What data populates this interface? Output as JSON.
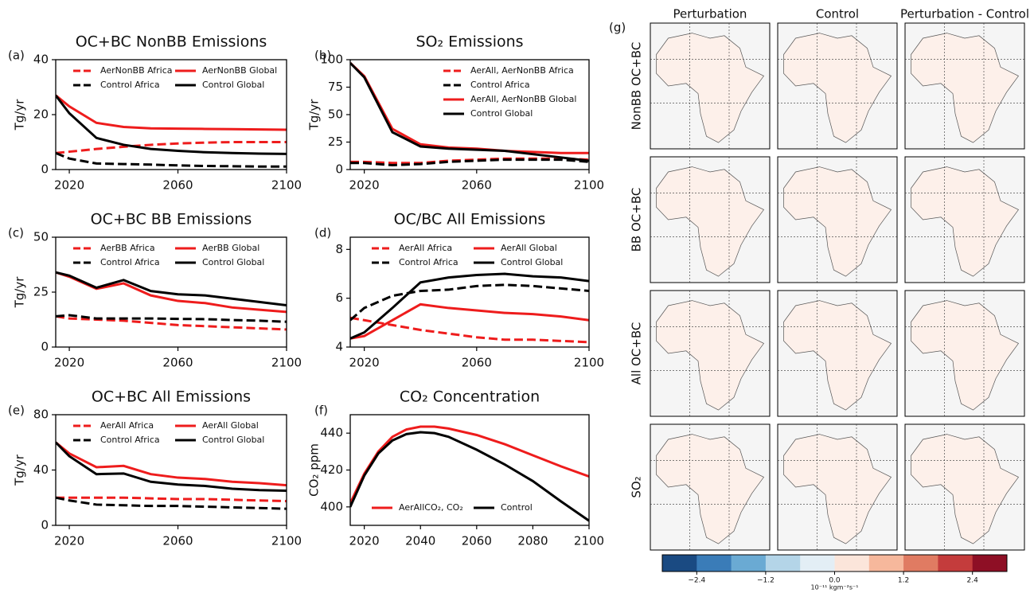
{
  "chart_data": [
    {
      "type": "line",
      "panel_label": "(a)",
      "title": "OC+BC NonBB Emissions",
      "y_label": "Tg/yr",
      "x": [
        2015,
        2020,
        2030,
        2040,
        2050,
        2060,
        2070,
        2080,
        2090,
        2100
      ],
      "xlim": [
        2015,
        2100
      ],
      "xticks": [
        2020,
        2060,
        2100
      ],
      "ylim": [
        0,
        40
      ],
      "yticks": [
        0,
        20,
        40
      ],
      "legend_loc": "upper center",
      "legend_columns": 2,
      "series": [
        {
          "name": "AerNonBB Africa",
          "color": "#ee1c1c",
          "dash": true,
          "values": [
            6,
            6.5,
            7.5,
            8.3,
            9,
            9.5,
            9.8,
            10,
            10,
            10
          ]
        },
        {
          "name": "Control Africa",
          "color": "#000000",
          "dash": true,
          "values": [
            6,
            4,
            2.2,
            2,
            1.8,
            1.5,
            1.3,
            1.2,
            1.1,
            1.1
          ]
        },
        {
          "name": "AerNonBB Global",
          "color": "#ee1c1c",
          "dash": false,
          "values": [
            27,
            23,
            17,
            15.5,
            15,
            14.9,
            14.8,
            14.7,
            14.6,
            14.5
          ]
        },
        {
          "name": "Control Global",
          "color": "#000000",
          "dash": false,
          "values": [
            27,
            20.5,
            11.5,
            9,
            7.5,
            6.8,
            6.3,
            6,
            5.8,
            5.7
          ]
        }
      ]
    },
    {
      "type": "line",
      "panel_label": "(b)",
      "title": "SO₂ Emissions",
      "y_label": "Tg/yr",
      "x": [
        2015,
        2020,
        2030,
        2040,
        2050,
        2060,
        2070,
        2080,
        2090,
        2100
      ],
      "xlim": [
        2015,
        2100
      ],
      "xticks": [
        2020,
        2060,
        2100
      ],
      "ylim": [
        0,
        100
      ],
      "yticks": [
        0,
        25,
        50,
        75,
        100
      ],
      "legend_loc": "upper right",
      "legend_columns": 1,
      "series": [
        {
          "name": "AerAll, AerNonBB Africa",
          "color": "#ee1c1c",
          "dash": true,
          "values": [
            7,
            7,
            6,
            6,
            8,
            9,
            10,
            10,
            10,
            9
          ]
        },
        {
          "name": "Control Africa",
          "color": "#000000",
          "dash": true,
          "values": [
            6,
            6,
            4,
            5,
            7,
            8,
            9,
            9,
            9,
            7
          ]
        },
        {
          "name": "AerAll, AerNonBB Global",
          "color": "#ee1c1c",
          "dash": false,
          "values": [
            97,
            85,
            37,
            23,
            20,
            19,
            17,
            16,
            15,
            15
          ]
        },
        {
          "name": "Control Global",
          "color": "#000000",
          "dash": false,
          "values": [
            97,
            84,
            34,
            21,
            19,
            18,
            17,
            14,
            11,
            8
          ]
        }
      ]
    },
    {
      "type": "line",
      "panel_label": "(c)",
      "title": "OC+BC BB Emissions",
      "y_label": "Tg/yr",
      "x": [
        2015,
        2020,
        2030,
        2040,
        2050,
        2060,
        2070,
        2080,
        2090,
        2100
      ],
      "xlim": [
        2015,
        2100
      ],
      "xticks": [
        2020,
        2060,
        2100
      ],
      "ylim": [
        0,
        50
      ],
      "yticks": [
        0,
        25,
        50
      ],
      "legend_loc": "upper center",
      "legend_columns": 2,
      "series": [
        {
          "name": "AerBB Africa",
          "color": "#ee1c1c",
          "dash": true,
          "values": [
            14,
            13,
            12.5,
            12,
            11,
            10,
            9.5,
            9,
            8.5,
            8
          ]
        },
        {
          "name": "Control Africa",
          "color": "#000000",
          "dash": true,
          "values": [
            14,
            14.5,
            13,
            13,
            13,
            12.8,
            12.7,
            12.3,
            12,
            11.5
          ]
        },
        {
          "name": "AerBB Global",
          "color": "#ee1c1c",
          "dash": false,
          "values": [
            34,
            32,
            26.5,
            29,
            23.5,
            21,
            20,
            18,
            17,
            16
          ]
        },
        {
          "name": "Control Global",
          "color": "#000000",
          "dash": false,
          "values": [
            34,
            32.5,
            27,
            30.5,
            25.5,
            24,
            23.5,
            22,
            20.5,
            19
          ]
        }
      ]
    },
    {
      "type": "line",
      "panel_label": "(d)",
      "title": "OC/BC All Emissions",
      "x": [
        2015,
        2020,
        2030,
        2040,
        2050,
        2060,
        2070,
        2080,
        2090,
        2100
      ],
      "xlim": [
        2015,
        2100
      ],
      "xticks": [
        2020,
        2060,
        2100
      ],
      "ylim": [
        4,
        8.5
      ],
      "yticks": [
        4,
        6,
        8
      ],
      "legend_loc": "upper center",
      "legend_columns": 2,
      "series": [
        {
          "name": "AerAll Africa",
          "color": "#ee1c1c",
          "dash": true,
          "values": [
            5.2,
            5.1,
            4.9,
            4.7,
            4.55,
            4.4,
            4.3,
            4.3,
            4.25,
            4.2
          ]
        },
        {
          "name": "Control Africa",
          "color": "#000000",
          "dash": true,
          "values": [
            5.1,
            5.6,
            6.1,
            6.3,
            6.35,
            6.5,
            6.55,
            6.5,
            6.4,
            6.3
          ]
        },
        {
          "name": "AerAll Global",
          "color": "#ee1c1c",
          "dash": false,
          "values": [
            4.35,
            4.45,
            5.1,
            5.75,
            5.6,
            5.5,
            5.4,
            5.35,
            5.25,
            5.1
          ]
        },
        {
          "name": "Control Global",
          "color": "#000000",
          "dash": false,
          "values": [
            4.35,
            4.6,
            5.6,
            6.65,
            6.85,
            6.95,
            7.0,
            6.9,
            6.85,
            6.7
          ]
        }
      ]
    },
    {
      "type": "line",
      "panel_label": "(e)",
      "title": "OC+BC All Emissions",
      "y_label": "Tg/yr",
      "x": [
        2015,
        2020,
        2030,
        2040,
        2050,
        2060,
        2070,
        2080,
        2090,
        2100
      ],
      "xlim": [
        2015,
        2100
      ],
      "xticks": [
        2020,
        2060,
        2100
      ],
      "ylim": [
        0,
        80
      ],
      "yticks": [
        0,
        40,
        80
      ],
      "legend_loc": "upper center",
      "legend_columns": 2,
      "series": [
        {
          "name": "AerAll Africa",
          "color": "#ee1c1c",
          "dash": true,
          "values": [
            20,
            20,
            20,
            20,
            19.5,
            19,
            19,
            18.5,
            18,
            17.5
          ]
        },
        {
          "name": "Control Africa",
          "color": "#000000",
          "dash": true,
          "values": [
            20,
            18,
            15,
            14.5,
            14,
            14,
            13.5,
            13,
            12.5,
            12
          ]
        },
        {
          "name": "AerAll Global",
          "color": "#ee1c1c",
          "dash": false,
          "values": [
            60,
            52,
            42,
            43,
            37,
            34.5,
            33.5,
            31.5,
            30.5,
            29
          ]
        },
        {
          "name": "Control Global",
          "color": "#000000",
          "dash": false,
          "values": [
            60,
            50,
            37,
            37.5,
            31.5,
            29.5,
            28.5,
            26.5,
            25.5,
            25
          ]
        }
      ]
    },
    {
      "type": "line",
      "panel_label": "(f)",
      "title": "CO₂ Concentration",
      "y_label": "CO₂ ppm",
      "x": [
        2015,
        2020,
        2025,
        2030,
        2035,
        2040,
        2045,
        2050,
        2060,
        2070,
        2080,
        2090,
        2100
      ],
      "xlim": [
        2015,
        2100
      ],
      "xticks": [
        2020,
        2040,
        2060,
        2080,
        2100
      ],
      "ylim": [
        390,
        450
      ],
      "yticks": [
        400,
        420,
        440
      ],
      "legend_loc": "lower center",
      "legend_columns": 2,
      "series": [
        {
          "name": "AerAllCO₂, CO₂",
          "color": "#ee1c1c",
          "dash": false,
          "values": [
            402,
            418,
            430,
            438,
            442,
            443.5,
            443.5,
            442.5,
            439,
            434,
            428,
            422,
            416.5
          ]
        },
        {
          "name": "Control",
          "color": "#000000",
          "dash": false,
          "values": [
            400,
            417,
            429,
            436,
            439.5,
            440.5,
            440,
            438,
            431,
            423,
            414,
            403,
            392.5
          ]
        }
      ]
    },
    {
      "type": "map",
      "panel_label": "(g)",
      "column_titles": [
        "Perturbation",
        "Control",
        "Perturbation - Control"
      ],
      "row_labels": [
        "NonBB OC+BC",
        "BB OC+BC",
        "All OC+BC",
        "SO₂"
      ],
      "colorbar": {
        "colors": [
          "#1a4a82",
          "#3a7cb8",
          "#6aaad3",
          "#b4d5e8",
          "#e3eef5",
          "#fbe5da",
          "#f6b89c",
          "#e07b62",
          "#c43c3c",
          "#8e0f25"
        ],
        "lim": [
          -3,
          3
        ],
        "ticks": [
          {
            "value": -2.4,
            "label": "−2.4"
          },
          {
            "value": -1.2,
            "label": "−1.2"
          },
          {
            "value": 0,
            "label": "0.0"
          },
          1.2,
          2.4
        ],
        "label": "10⁻¹¹ kgm⁻²s⁻¹"
      }
    }
  ]
}
